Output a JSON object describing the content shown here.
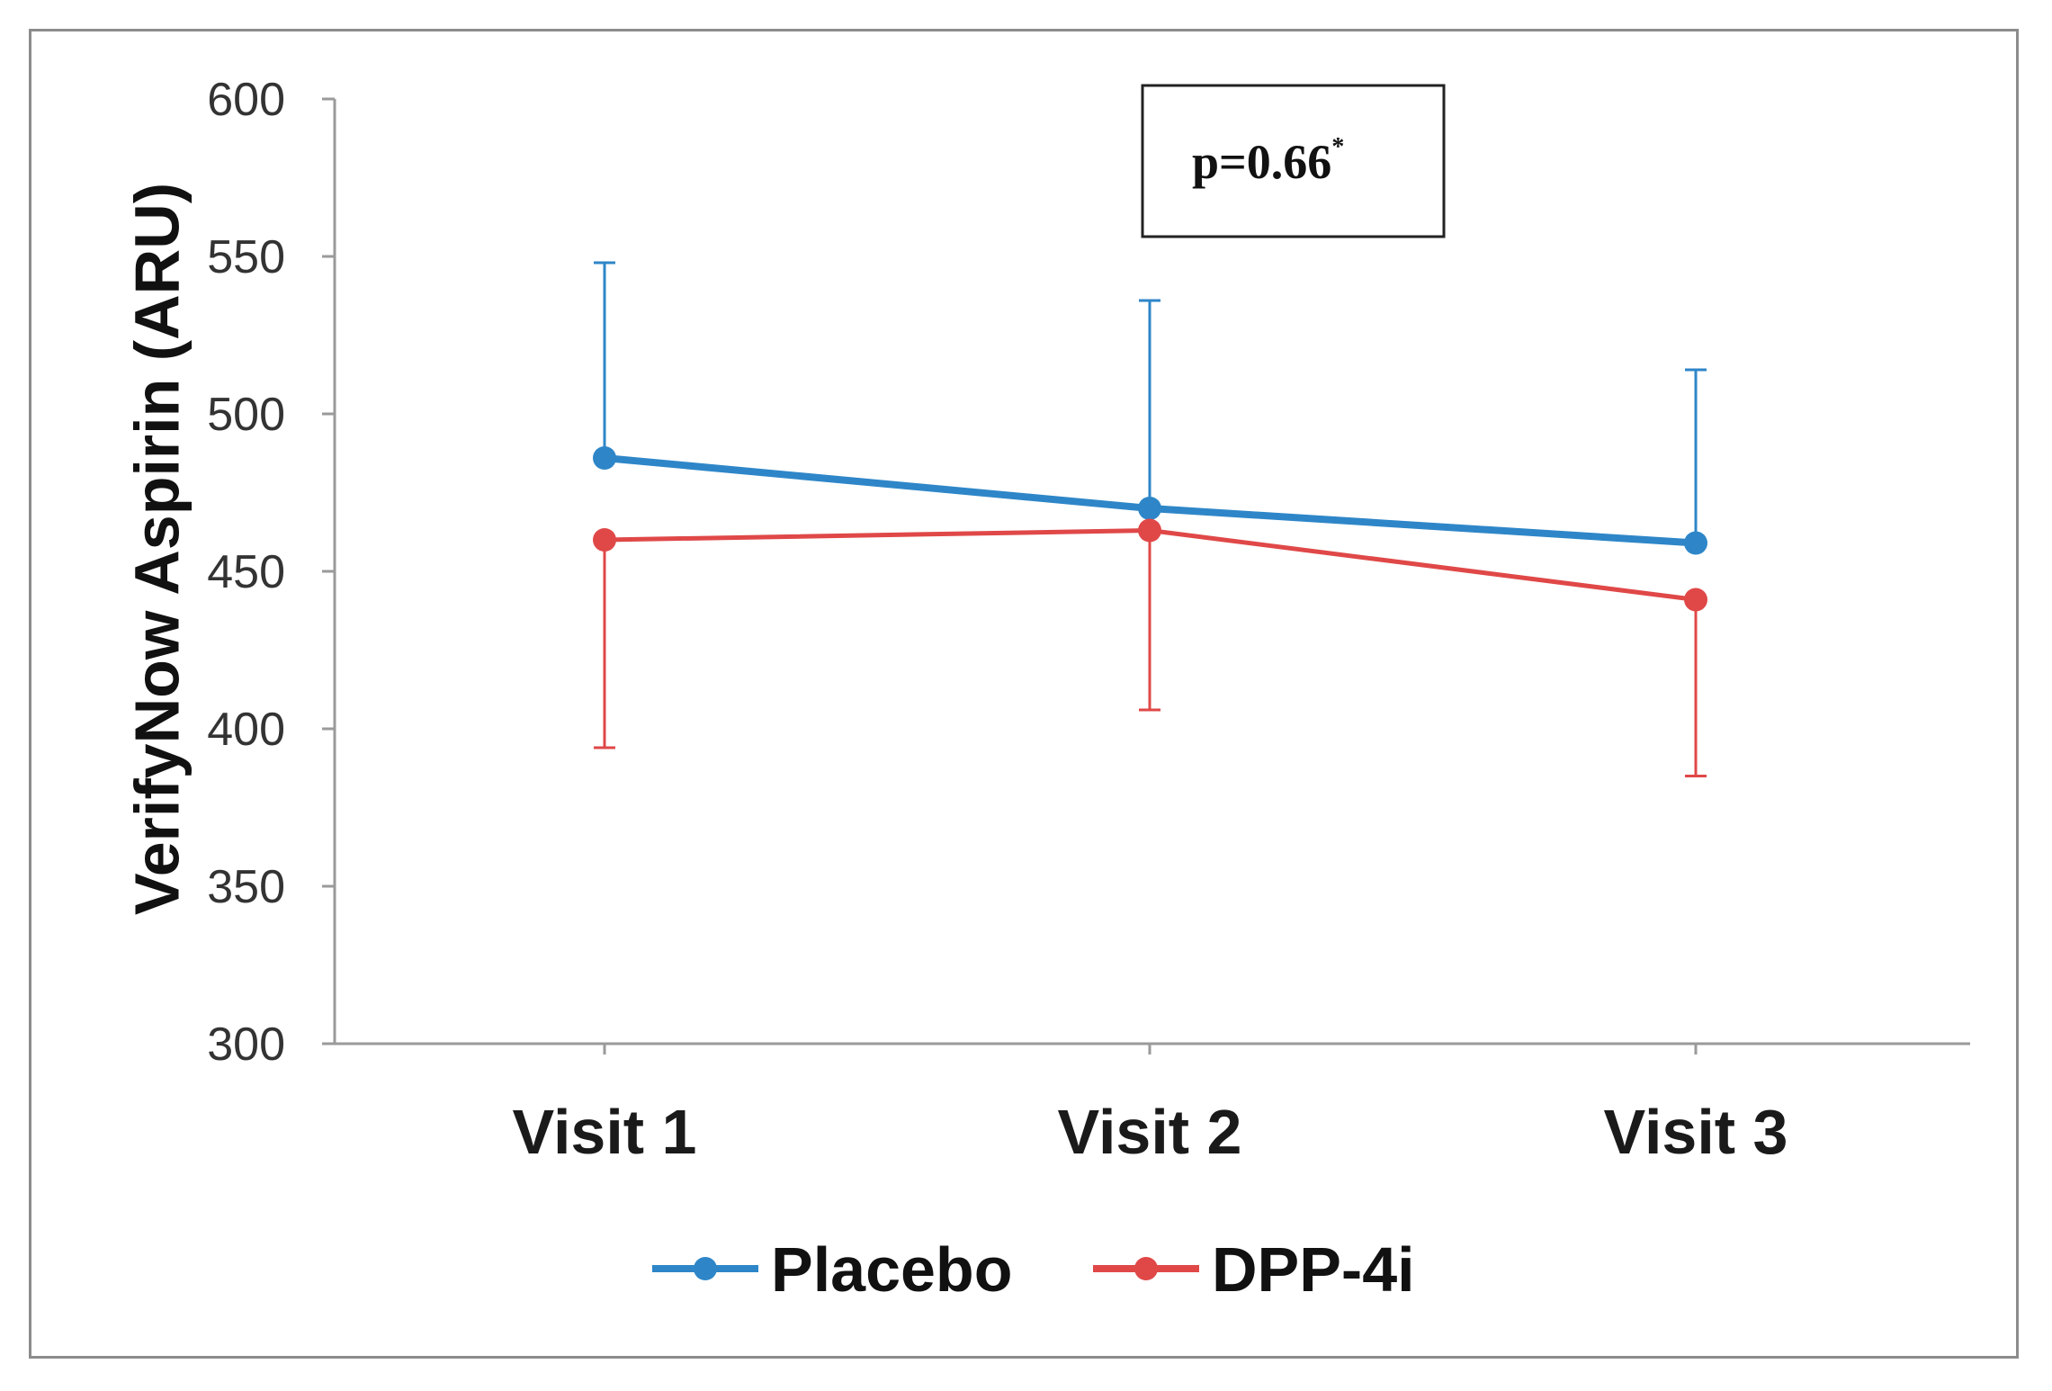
{
  "chart_data": {
    "type": "line",
    "categories": [
      "Visit 1",
      "Visit 2",
      "Visit 3"
    ],
    "series": [
      {
        "name": "Placebo",
        "color": "#2e86c8",
        "values": [
          486,
          470,
          459
        ],
        "error_upper": [
          548,
          536,
          514
        ]
      },
      {
        "name": "DPP-4i",
        "color": "#e04848",
        "values": [
          460,
          463,
          441
        ],
        "error_lower": [
          394,
          406,
          385
        ]
      }
    ],
    "title": "",
    "xlabel": "",
    "ylabel": "VerifyNow Aspirin (ARU)",
    "ylim": [
      300,
      600
    ],
    "yticks": [
      "300",
      "350",
      "400",
      "450",
      "500",
      "550",
      "600"
    ],
    "grid": false,
    "legend_position": "bottom",
    "annotation": {
      "text": "p=0.66",
      "superscript": "*"
    }
  }
}
